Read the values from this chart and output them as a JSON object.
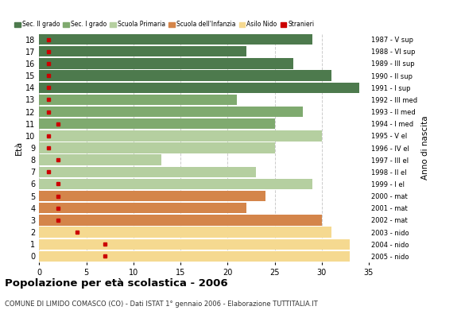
{
  "ages": [
    18,
    17,
    16,
    15,
    14,
    13,
    12,
    11,
    10,
    9,
    8,
    7,
    6,
    5,
    4,
    3,
    2,
    1,
    0
  ],
  "bar_values": [
    29,
    22,
    27,
    31,
    34,
    21,
    28,
    25,
    30,
    25,
    13,
    23,
    29,
    24,
    22,
    30,
    31,
    33,
    33
  ],
  "stranieri": [
    1,
    1,
    1,
    1,
    1,
    1,
    1,
    2,
    1,
    1,
    2,
    1,
    2,
    2,
    2,
    2,
    4,
    7,
    7
  ],
  "right_labels": [
    "1987 - V sup",
    "1988 - VI sup",
    "1989 - III sup",
    "1990 - II sup",
    "1991 - I sup",
    "1992 - III med",
    "1993 - II med",
    "1994 - I med",
    "1995 - V el",
    "1996 - IV el",
    "1997 - III el",
    "1998 - II el",
    "1999 - I el",
    "2000 - mat",
    "2001 - mat",
    "2002 - mat",
    "2003 - nido",
    "2004 - nido",
    "2005 - nido"
  ],
  "colors": {
    "Sec. II grado": "#4d7a4d",
    "Sec. I grado": "#7faa6f",
    "Scuola Primaria": "#b5cfa0",
    "Scuola dell'Infanzia": "#d4854a",
    "Asilo Nido": "#f5d990",
    "Stranieri": "#cc0000"
  },
  "category_assignment": [
    "Sec. II grado",
    "Sec. II grado",
    "Sec. II grado",
    "Sec. II grado",
    "Sec. II grado",
    "Sec. I grado",
    "Sec. I grado",
    "Sec. I grado",
    "Scuola Primaria",
    "Scuola Primaria",
    "Scuola Primaria",
    "Scuola Primaria",
    "Scuola Primaria",
    "Scuola dell'Infanzia",
    "Scuola dell'Infanzia",
    "Scuola dell'Infanzia",
    "Asilo Nido",
    "Asilo Nido",
    "Asilo Nido"
  ],
  "title": "Popolazione per età scolastica - 2006",
  "subtitle": "COMUNE DI LIMIDO COMASCO (CO) - Dati ISTAT 1° gennaio 2006 - Elaborazione TUTTITALIA.IT",
  "ylabel": "Età",
  "xlabel_right": "Anno di nascita",
  "xlim": [
    0,
    35
  ],
  "xticks": [
    0,
    5,
    10,
    15,
    20,
    25,
    30,
    35
  ],
  "bg_color": "#ffffff",
  "grid_color": "#cccccc"
}
